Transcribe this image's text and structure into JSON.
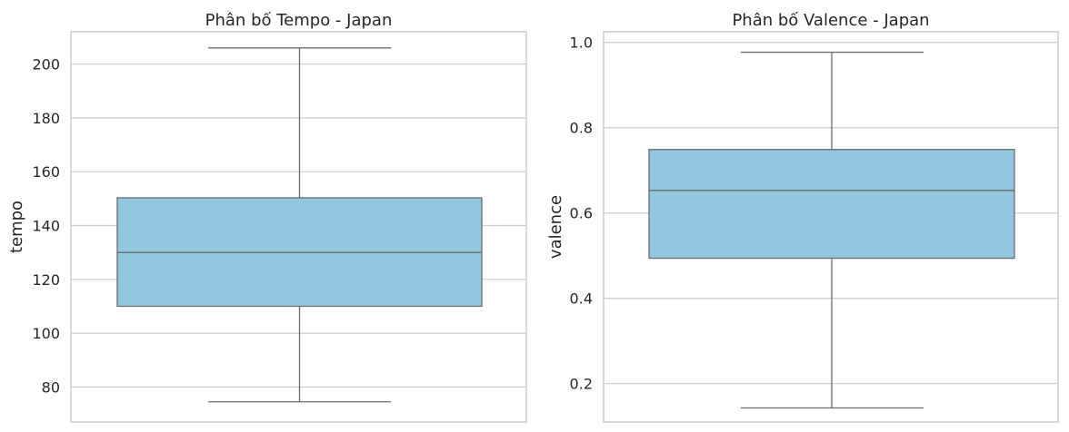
{
  "colors": {
    "box_fill": "#91c8e0",
    "line": "#6b6b6b",
    "grid": "#cccccc",
    "frame": "#cccccc"
  },
  "chart_data": [
    {
      "type": "box",
      "title": "Phân bố Tempo - Japan",
      "xlabel": "",
      "ylabel": "tempo",
      "ylim": [
        67,
        212
      ],
      "yticks": [
        80,
        100,
        120,
        140,
        160,
        180,
        200
      ],
      "ytick_labels": [
        "80",
        "100",
        "120",
        "140",
        "160",
        "180",
        "200"
      ],
      "grid": "horizontal",
      "box": {
        "whisker_low": 74.5,
        "q1": 110,
        "median": 130,
        "q3": 150.3,
        "whisker_high": 206
      }
    },
    {
      "type": "box",
      "title": "Phân bố Valence - Japan",
      "xlabel": "",
      "ylabel": "valence",
      "ylim": [
        0.11,
        1.025
      ],
      "yticks": [
        0.2,
        0.4,
        0.6,
        0.8,
        1.0
      ],
      "ytick_labels": [
        "0.2",
        "0.4",
        "0.6",
        "0.8",
        "1.0"
      ],
      "grid": "horizontal",
      "box": {
        "whisker_low": 0.143,
        "q1": 0.494,
        "median": 0.653,
        "q3": 0.749,
        "whisker_high": 0.977
      }
    }
  ]
}
